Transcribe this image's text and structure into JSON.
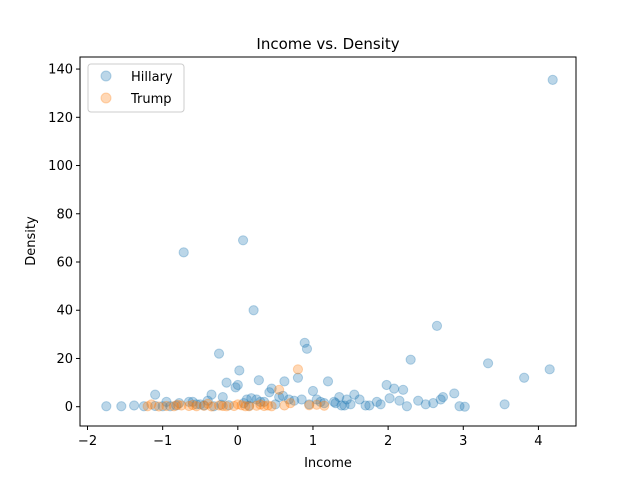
{
  "chart_data": {
    "type": "scatter",
    "title": "Income vs. Density",
    "xlabel": "Income",
    "ylabel": "Density",
    "xlim": [
      -2.1,
      4.5
    ],
    "ylim": [
      -8,
      145
    ],
    "xticks": [
      -2,
      -1,
      0,
      1,
      2,
      3,
      4
    ],
    "yticks": [
      0,
      20,
      40,
      60,
      80,
      100,
      120,
      140
    ],
    "grid": false,
    "legend_position": "top-left",
    "series": [
      {
        "name": "Hillary",
        "color": "#1f77b4",
        "x": [
          4.19,
          -0.72,
          0.07,
          0.21,
          2.65,
          0.89,
          0.92,
          -0.25,
          3.33,
          4.15,
          3.81,
          2.3,
          0.02,
          1.2,
          0.62,
          -0.15,
          -0.03,
          0.0,
          0.28,
          0.45,
          0.8,
          1.35,
          1.55,
          1.98,
          2.08,
          2.2,
          2.88,
          2.73,
          3.55,
          2.95,
          3.02,
          -1.75,
          -1.55,
          -1.38,
          -1.25,
          -1.1,
          -1.0,
          -0.82,
          -0.65,
          -0.55,
          -0.45,
          -0.32,
          -0.22,
          -0.12,
          0.08,
          0.15,
          0.25,
          0.35,
          0.5,
          0.68,
          0.75,
          0.95,
          1.05,
          1.15,
          1.28,
          1.42,
          1.5,
          1.62,
          1.75,
          1.85,
          2.02,
          2.15,
          2.4,
          2.5,
          2.6,
          2.7,
          -1.1,
          -0.95,
          -0.78,
          -0.6,
          -0.4,
          -0.2,
          0.12,
          0.3,
          0.55,
          0.85,
          1.1,
          1.3,
          1.45,
          1.7,
          1.9,
          2.25,
          -0.9,
          -0.35,
          0.18,
          0.42,
          1.38,
          -0.5,
          0.6,
          1.0
        ],
        "y": [
          135.5,
          64,
          69,
          40,
          33.5,
          26.5,
          24,
          22,
          18,
          15.5,
          12,
          19.5,
          15,
          10.5,
          10.5,
          10,
          8,
          9,
          11,
          7.5,
          12,
          4,
          5,
          9,
          7.5,
          7,
          5.5,
          4,
          1,
          0.2,
          0,
          0.2,
          0.2,
          0.5,
          0.2,
          0.3,
          0.2,
          0.5,
          2,
          1,
          0.5,
          0.2,
          0.8,
          0.6,
          1.5,
          0.4,
          3,
          2,
          1,
          3,
          2.5,
          1,
          3,
          1.5,
          2,
          0.5,
          1,
          3,
          0.5,
          2,
          3.5,
          2.5,
          2.5,
          1,
          1.5,
          3,
          5,
          2,
          1.5,
          2,
          2.5,
          4,
          3,
          2,
          4,
          3,
          2,
          1.5,
          3,
          0.5,
          1,
          0.2,
          0.2,
          5,
          3.5,
          6,
          0.5,
          1,
          4.5,
          6.5
        ]
      },
      {
        "name": "Trump",
        "color": "#ff7f0e",
        "x": [
          0.8,
          0.55,
          -1.2,
          -1.05,
          -0.95,
          -0.85,
          -0.75,
          -0.65,
          -0.55,
          -0.45,
          -0.35,
          -0.25,
          -0.15,
          -0.05,
          0.05,
          0.15,
          0.25,
          0.35,
          0.45,
          0.62,
          1.05,
          1.15,
          -1.15,
          -0.8,
          -0.4,
          0.0,
          0.3,
          0.7,
          0.95,
          -0.6,
          -0.2,
          0.1,
          0.4
        ],
        "y": [
          15.5,
          7,
          0.2,
          0.1,
          0.3,
          0.2,
          0.5,
          0.3,
          0.2,
          0.4,
          0.1,
          0.5,
          0.2,
          0.3,
          0.6,
          0.2,
          0.4,
          0.3,
          0.2,
          0.5,
          0.8,
          0.4,
          1,
          0.8,
          1.2,
          1,
          0.9,
          1.5,
          0.6,
          0.7,
          0.3,
          0.2,
          0.5
        ]
      }
    ]
  }
}
